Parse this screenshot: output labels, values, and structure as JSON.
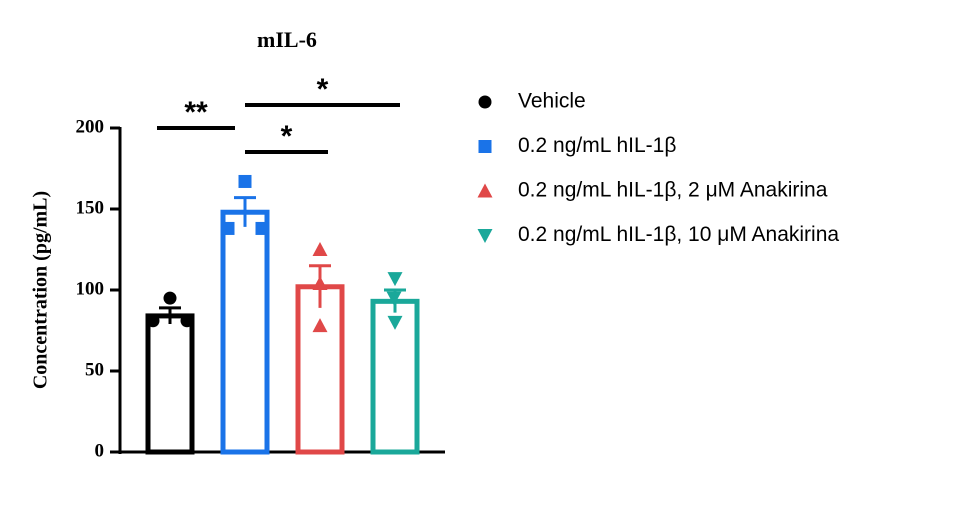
{
  "chart_data": {
    "type": "bar",
    "title": "mIL-6",
    "y_label": "Concentration (pg/mL)",
    "ylim": [
      0,
      200
    ],
    "yticks": [
      0,
      50,
      100,
      150,
      200
    ],
    "series": [
      {
        "name": "Vehicle",
        "color": "#000000",
        "marker": "circle",
        "value": 84,
        "error": 5,
        "points": [
          95,
          81,
          81
        ]
      },
      {
        "name": "0.2 ng/mL hIL-1β",
        "color": "#1a73e8",
        "marker": "square",
        "value": 148,
        "error": 9,
        "points": [
          167,
          138,
          138
        ]
      },
      {
        "name": "0.2 ng/mL hIL-1β, 2 μM Anakirina",
        "color": "#e04848",
        "marker": "triangle-up",
        "value": 102,
        "error": 13,
        "points": [
          125,
          104,
          78
        ]
      },
      {
        "name": "0.2 ng/mL hIL-1β, 10 μM Anakirina",
        "color": "#1aa89a",
        "marker": "triangle-down",
        "value": 93,
        "error": 7,
        "points": [
          107,
          95,
          80
        ]
      }
    ],
    "comparisons": [
      {
        "label": "**",
        "between": [
          0,
          1
        ]
      },
      {
        "label": "*",
        "between": [
          1,
          3
        ]
      },
      {
        "label": "*",
        "between": [
          1,
          2
        ]
      }
    ]
  }
}
